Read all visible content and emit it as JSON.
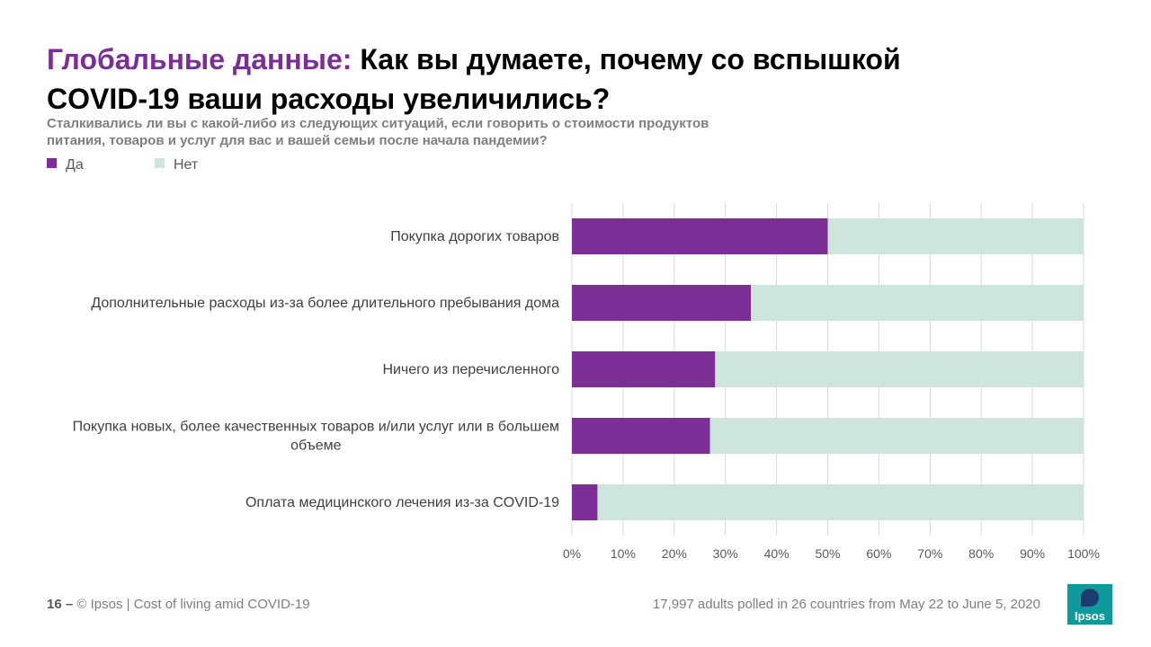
{
  "header": {
    "title_accent": "Глобальные данные:",
    "title_main": "Как вы думаете, почему со вспышкой COVID-19 ваши расходы увеличились?",
    "subtitle": "Сталкивались ли вы с какой-либо из следующих ситуаций, если говорить о стоимости продуктов питания, товаров и услуг для вас и вашей семьи после начала пандемии?"
  },
  "colors": {
    "yes": "#7B2E96",
    "no": "#CDE5DC",
    "accent": "#7B2E96",
    "grid": "#D9D9D9"
  },
  "chart_data": {
    "type": "bar",
    "orientation": "horizontal",
    "stacked": true,
    "categories": [
      "Покупка дорогих товаров",
      "Дополнительные расходы из-за более длительного пребывания дома",
      "Ничего из перечисленного",
      "Покупка новых, более качественных товаров и/или услуг или в большем объеме",
      "Оплата медицинского лечения из-за COVID-19"
    ],
    "series": [
      {
        "name": "Да",
        "values": [
          50,
          35,
          28,
          27,
          5
        ]
      },
      {
        "name": "Нет",
        "values": [
          50,
          65,
          72,
          73,
          95
        ]
      }
    ],
    "xlim": [
      0,
      100
    ],
    "xticks": [
      "0%",
      "10%",
      "20%",
      "30%",
      "40%",
      "50%",
      "60%",
      "70%",
      "80%",
      "90%",
      "100%"
    ],
    "grid": true,
    "legend_position": "top-left"
  },
  "footer": {
    "page": "16 –",
    "source": "© Ipsos | Cost of living amid COVID-19",
    "note": "17,997 adults polled in 26 countries from May 22 to June 5, 2020",
    "logo_text": "Ipsos"
  }
}
